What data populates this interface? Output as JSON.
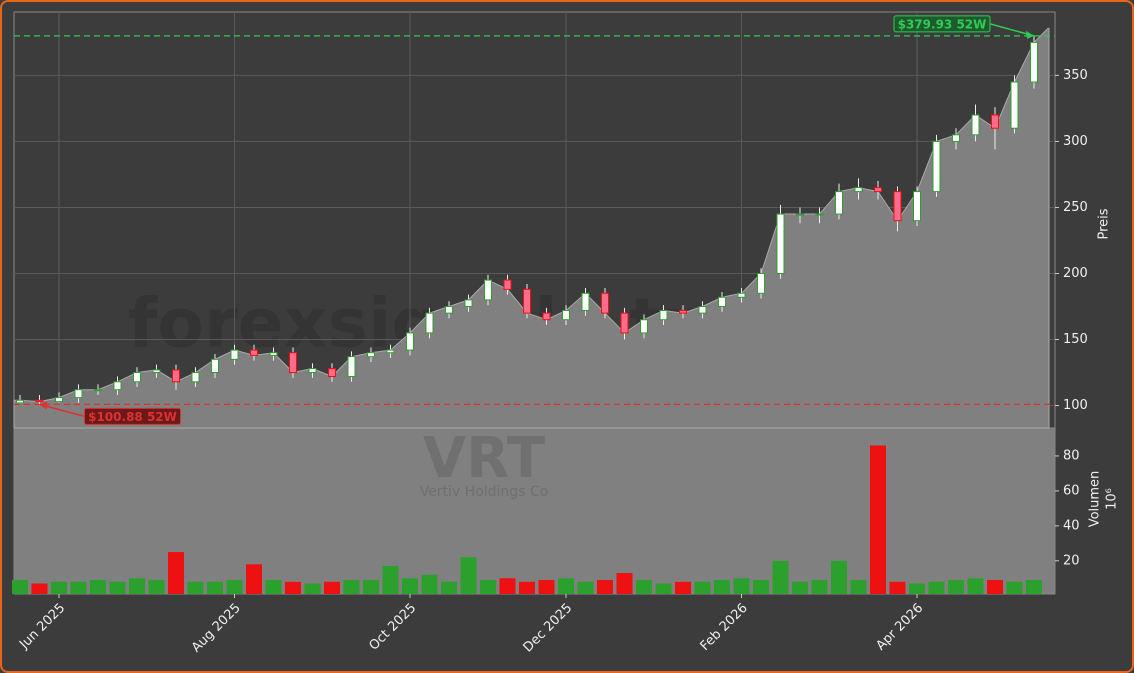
{
  "chart_data": {
    "type": "candlestick",
    "watermark": "forexsignale.trade",
    "ticker": "VRT",
    "company": "Vertiv Holdings Co",
    "ylabel": "Preis",
    "y2label": "Volumen",
    "y2label_exponent": "10⁶",
    "categories": [
      null,
      null,
      "Jun 2025",
      null,
      null,
      null,
      null,
      null,
      null,
      null,
      null,
      "Aug 2025",
      null,
      null,
      null,
      null,
      null,
      null,
      null,
      null,
      "Oct 2025",
      null,
      null,
      null,
      null,
      null,
      null,
      null,
      "Dec 2025",
      null,
      null,
      null,
      null,
      null,
      null,
      null,
      null,
      "Feb 2026",
      null,
      null,
      null,
      null,
      null,
      null,
      null,
      null,
      "Apr 2026",
      null,
      null,
      null,
      null,
      null,
      null
    ],
    "open": [
      102,
      104,
      103,
      106,
      112,
      112,
      118,
      125,
      127,
      118,
      125,
      135,
      142,
      138,
      140,
      125,
      128,
      122,
      137,
      140,
      142,
      155,
      170,
      175,
      180,
      195,
      188,
      170,
      165,
      172,
      185,
      170,
      155,
      165,
      172,
      170,
      175,
      182,
      185,
      200,
      245,
      245,
      245,
      262,
      265,
      262,
      240,
      262,
      300,
      305,
      320,
      310,
      345
    ],
    "high": [
      108,
      108,
      110,
      116,
      116,
      122,
      129,
      131,
      131,
      129,
      139,
      146,
      146,
      144,
      144,
      132,
      132,
      141,
      144,
      146,
      159,
      174,
      179,
      184,
      199,
      199,
      192,
      174,
      176,
      189,
      189,
      174,
      169,
      176,
      176,
      179,
      186,
      189,
      204,
      252,
      250,
      250,
      268,
      272,
      270,
      266,
      266,
      305,
      310,
      328,
      326,
      350,
      379.93
    ],
    "low": [
      101.5,
      100.88,
      102,
      102,
      108,
      108,
      114,
      121,
      112,
      114,
      121,
      131,
      134,
      134,
      121,
      121,
      118,
      118,
      133,
      136,
      138,
      151,
      166,
      171,
      176,
      184,
      166,
      161,
      161,
      168,
      166,
      150,
      151,
      161,
      166,
      166,
      171,
      178,
      181,
      196,
      238,
      238,
      241,
      256,
      256,
      232,
      236,
      258,
      294,
      300,
      294,
      306,
      340
    ],
    "close": [
      104,
      103,
      106,
      112,
      112,
      118,
      125,
      127,
      118,
      125,
      135,
      142,
      138,
      140,
      125,
      128,
      122,
      137,
      140,
      142,
      155,
      170,
      175,
      180,
      195,
      188,
      170,
      165,
      172,
      185,
      170,
      155,
      165,
      172,
      170,
      175,
      182,
      185,
      200,
      245,
      245,
      245,
      262,
      265,
      262,
      240,
      262,
      300,
      305,
      320,
      310,
      345,
      375
    ],
    "volume": [
      9,
      7,
      8,
      8,
      9,
      8,
      10,
      9,
      25,
      8,
      8,
      9,
      18,
      9,
      8,
      7,
      8,
      9,
      9,
      17,
      10,
      12,
      8,
      22,
      9,
      10,
      8,
      9,
      10,
      8,
      9,
      13,
      9,
      7,
      8,
      8,
      9,
      10,
      9,
      20,
      8,
      9,
      20,
      9,
      86,
      8,
      7,
      8,
      9,
      10,
      9,
      8,
      9
    ],
    "up_color": "#2ca02c",
    "down_color": "#ee1111",
    "ylim": [
      83,
      398
    ],
    "yticks": [
      100,
      150,
      200,
      250,
      300,
      350
    ],
    "y2lim": [
      1,
      96
    ],
    "y2ticks": [
      20,
      40,
      60,
      80
    ],
    "grid": true,
    "annotations": [
      {
        "value": 379.93,
        "label": "$379.93 52W",
        "color": "#2ecc55"
      },
      {
        "value": 100.88,
        "label": "$100.88 52W",
        "color": "#e03030"
      }
    ]
  }
}
